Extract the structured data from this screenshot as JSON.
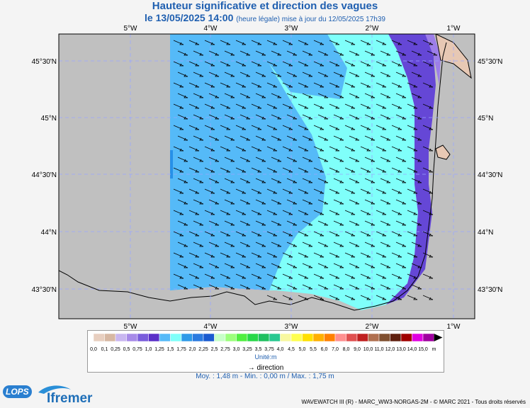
{
  "header": {
    "title": "Hauteur significative et direction des vagues",
    "date_line": "le 13/05/2025 14:00",
    "update_note": "(heure légale) mise à jour du 12/05/2025 17h39"
  },
  "map": {
    "lon_labels": [
      "5°W",
      "4°W",
      "3°W",
      "2°W",
      "1°W"
    ],
    "lat_labels": [
      "45°30'N",
      "45°N",
      "44°30'N",
      "44°N",
      "43°30'N"
    ],
    "colors": {
      "land": "#c0c0c0",
      "coast_land": "#e7c8b4",
      "sea_1_25": "#55baf8",
      "sea_1_5": "#7ffffa",
      "sea_1_0": "#6547d6",
      "sea_0_75": "#9d7ee8",
      "sea_0_5": "#c7b5f0",
      "sea_1_75": "#2790e8",
      "grid": "#9aa6ff"
    }
  },
  "legend": {
    "levels": [
      "0,0",
      "0,1",
      "0,25",
      "0,5",
      "0,75",
      "1,0",
      "1,25",
      "1,5",
      "1,75",
      "2,0",
      "2,25",
      "2,5",
      "2,75",
      "3,0",
      "3,25",
      "3,5",
      "3,75",
      "4,0",
      "4,5",
      "5,0",
      "5,5",
      "6,0",
      "7,0",
      "8,0",
      "9,0",
      "10,0",
      "11,0",
      "12,0",
      "13,0",
      "14,0",
      "15,0",
      "m"
    ],
    "colors": [
      "#e8cfc0",
      "#d7b8a3",
      "#c9b7f0",
      "#a78ae8",
      "#7a5ddc",
      "#5a2fc8",
      "#55baf8",
      "#7ffffa",
      "#2e9ae8",
      "#2b7be0",
      "#1a5bd0",
      "#c8ffc8",
      "#9cff7c",
      "#50ef40",
      "#28d848",
      "#20c060",
      "#28c890",
      "#f8f8a0",
      "#ffff50",
      "#ffe000",
      "#ffb000",
      "#ff8000",
      "#ff9090",
      "#e05050",
      "#c02020",
      "#b07050",
      "#805030",
      "#602010",
      "#a00000",
      "#e000e0",
      "#a000a0"
    ],
    "unit_label": "Unité:m",
    "direction_label": "direction"
  },
  "stats": {
    "text": "Moy. : 1,48 m   -   Min. : 0,00 m / Max. : 1,75 m"
  },
  "footer": {
    "credit": "WAVEWATCH III (R) - MARC_WW3-NORGAS-2M - © MARC 2021 - Tous droits réservés",
    "lops": "LOPS",
    "ifremer": "Ifremer"
  }
}
